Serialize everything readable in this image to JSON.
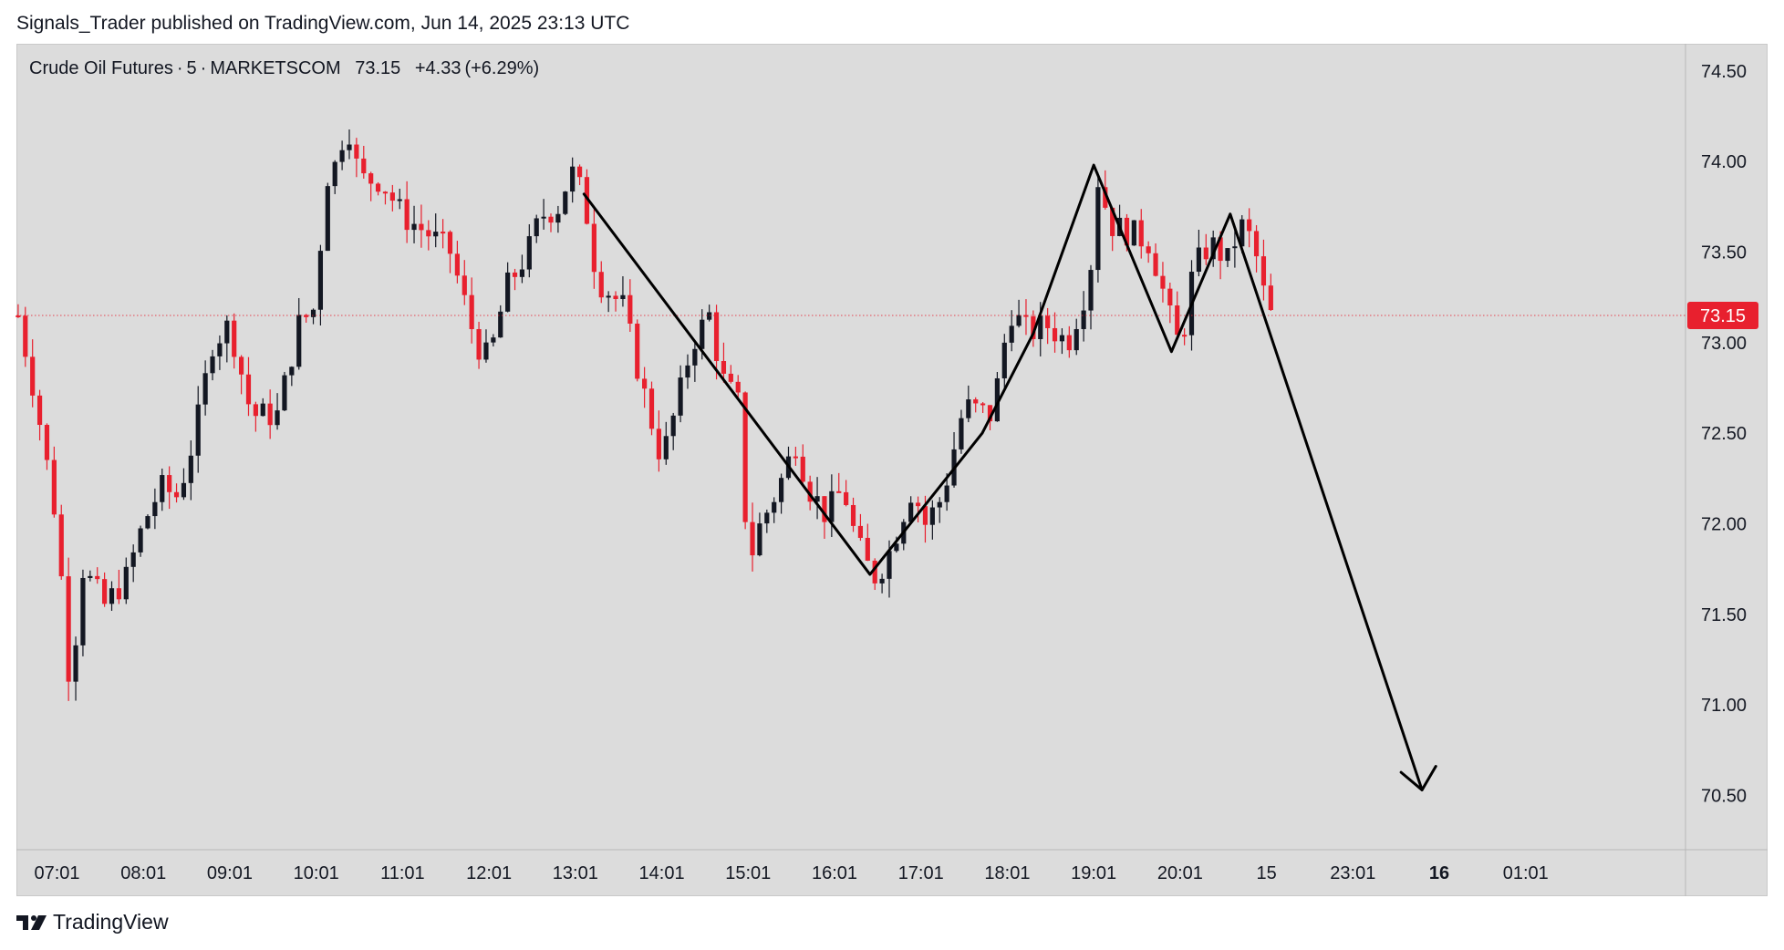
{
  "header": {
    "published_by": "Signals_Trader published on TradingView.com, Jun 14, 2025 23:13 UTC"
  },
  "symbol": {
    "name": "Crude Oil Futures",
    "sep1": "·",
    "interval": "5",
    "sep2": "·",
    "exchange": "MARKETSCOM",
    "last": "73.15",
    "change": "+4.33",
    "change_pct": "(+6.29%)"
  },
  "footer": {
    "brand_logo": "tradingview-logo",
    "brand_name": "TradingView"
  },
  "colors": {
    "up": "#131722",
    "down": "#e8202e",
    "price_line": "#e8202e",
    "background": "#dcdcdc",
    "drawing": "#000000"
  },
  "chart_data": {
    "type": "candlestick",
    "title": "Crude Oil Futures · 5 · MARKETSCOM",
    "current_price": 73.15,
    "current_price_label": "73.15",
    "ylim": [
      70.2,
      74.65
    ],
    "y_ticks": [
      "74.50",
      "74.00",
      "73.50",
      "73.00",
      "72.50",
      "72.00",
      "71.50",
      "71.00",
      "70.50"
    ],
    "x_ticks": [
      {
        "label": "07:01",
        "time": 7.0,
        "bold": false
      },
      {
        "label": "08:01",
        "time": 8.0,
        "bold": false
      },
      {
        "label": "09:01",
        "time": 9.0,
        "bold": false
      },
      {
        "label": "10:01",
        "time": 10.0,
        "bold": false
      },
      {
        "label": "11:01",
        "time": 11.0,
        "bold": false
      },
      {
        "label": "12:01",
        "time": 12.0,
        "bold": false
      },
      {
        "label": "13:01",
        "time": 13.0,
        "bold": false
      },
      {
        "label": "14:01",
        "time": 14.0,
        "bold": false
      },
      {
        "label": "15:01",
        "time": 15.0,
        "bold": false
      },
      {
        "label": "16:01",
        "time": 16.0,
        "bold": false
      },
      {
        "label": "17:01",
        "time": 17.0,
        "bold": false
      },
      {
        "label": "18:01",
        "time": 18.0,
        "bold": false
      },
      {
        "label": "19:01",
        "time": 19.0,
        "bold": false
      },
      {
        "label": "20:01",
        "time": 20.0,
        "bold": false
      },
      {
        "label": "15",
        "time": 21.0,
        "bold": false
      },
      {
        "label": "23:01",
        "time": 22.0,
        "bold": false
      },
      {
        "label": "16",
        "time": 23.0,
        "bold": true
      },
      {
        "label": "01:01",
        "time": 24.0,
        "bold": false
      }
    ],
    "xlim": [
      6.53,
      25.85
    ],
    "anchors": [
      [
        6.55,
        73.15
      ],
      [
        6.75,
        72.7
      ],
      [
        7.0,
        72.0
      ],
      [
        7.15,
        71.1
      ],
      [
        7.3,
        71.75
      ],
      [
        7.55,
        71.55
      ],
      [
        7.8,
        71.7
      ],
      [
        8.0,
        72.0
      ],
      [
        8.2,
        72.2
      ],
      [
        8.4,
        72.15
      ],
      [
        8.6,
        72.5
      ],
      [
        8.8,
        73.0
      ],
      [
        9.0,
        73.1
      ],
      [
        9.25,
        72.6
      ],
      [
        9.55,
        72.6
      ],
      [
        9.8,
        73.1
      ],
      [
        10.0,
        73.2
      ],
      [
        10.1,
        73.9
      ],
      [
        10.25,
        74.0
      ],
      [
        10.35,
        74.25
      ],
      [
        10.5,
        73.9
      ],
      [
        10.75,
        73.9
      ],
      [
        11.0,
        73.7
      ],
      [
        11.3,
        73.6
      ],
      [
        11.55,
        73.5
      ],
      [
        11.85,
        73.0
      ],
      [
        12.0,
        72.9
      ],
      [
        12.2,
        73.3
      ],
      [
        12.45,
        73.5
      ],
      [
        12.6,
        73.7
      ],
      [
        12.8,
        73.75
      ],
      [
        12.95,
        73.95
      ],
      [
        13.1,
        73.8
      ],
      [
        13.25,
        73.35
      ],
      [
        13.55,
        73.2
      ],
      [
        13.75,
        72.8
      ],
      [
        14.0,
        72.35
      ],
      [
        14.2,
        72.7
      ],
      [
        14.35,
        73.0
      ],
      [
        14.55,
        73.15
      ],
      [
        14.7,
        72.8
      ],
      [
        14.9,
        72.65
      ],
      [
        15.0,
        71.75
      ],
      [
        15.1,
        71.95
      ],
      [
        15.35,
        72.2
      ],
      [
        15.55,
        72.45
      ],
      [
        15.7,
        72.2
      ],
      [
        15.9,
        72.05
      ],
      [
        16.1,
        72.2
      ],
      [
        16.25,
        71.9
      ],
      [
        16.45,
        71.7
      ],
      [
        16.6,
        71.8
      ],
      [
        16.9,
        72.2
      ],
      [
        17.05,
        72.0
      ],
      [
        17.25,
        72.15
      ],
      [
        17.5,
        72.65
      ],
      [
        17.8,
        72.6
      ],
      [
        17.95,
        72.9
      ],
      [
        18.0,
        73.2
      ],
      [
        18.25,
        73.05
      ],
      [
        18.45,
        73.1
      ],
      [
        18.7,
        73.0
      ],
      [
        18.95,
        73.35
      ],
      [
        19.05,
        73.9
      ],
      [
        19.2,
        73.65
      ],
      [
        19.45,
        73.6
      ],
      [
        19.65,
        73.55
      ],
      [
        19.85,
        73.2
      ],
      [
        19.95,
        73.0
      ],
      [
        20.05,
        73.1
      ],
      [
        20.15,
        73.4
      ],
      [
        20.35,
        73.55
      ],
      [
        20.55,
        73.45
      ],
      [
        20.7,
        73.65
      ],
      [
        20.85,
        73.55
      ],
      [
        20.95,
        73.3
      ],
      [
        21.05,
        73.15
      ]
    ],
    "drawing": {
      "type": "zigzag-projection",
      "points": [
        [
          13.1,
          73.82
        ],
        [
          16.41,
          71.72
        ],
        [
          17.71,
          72.5
        ],
        [
          18.3,
          73.05
        ],
        [
          19.0,
          73.98
        ],
        [
          19.9,
          72.95
        ],
        [
          20.58,
          73.71
        ],
        [
          22.8,
          70.53
        ]
      ],
      "arrow_at_end": true
    }
  }
}
